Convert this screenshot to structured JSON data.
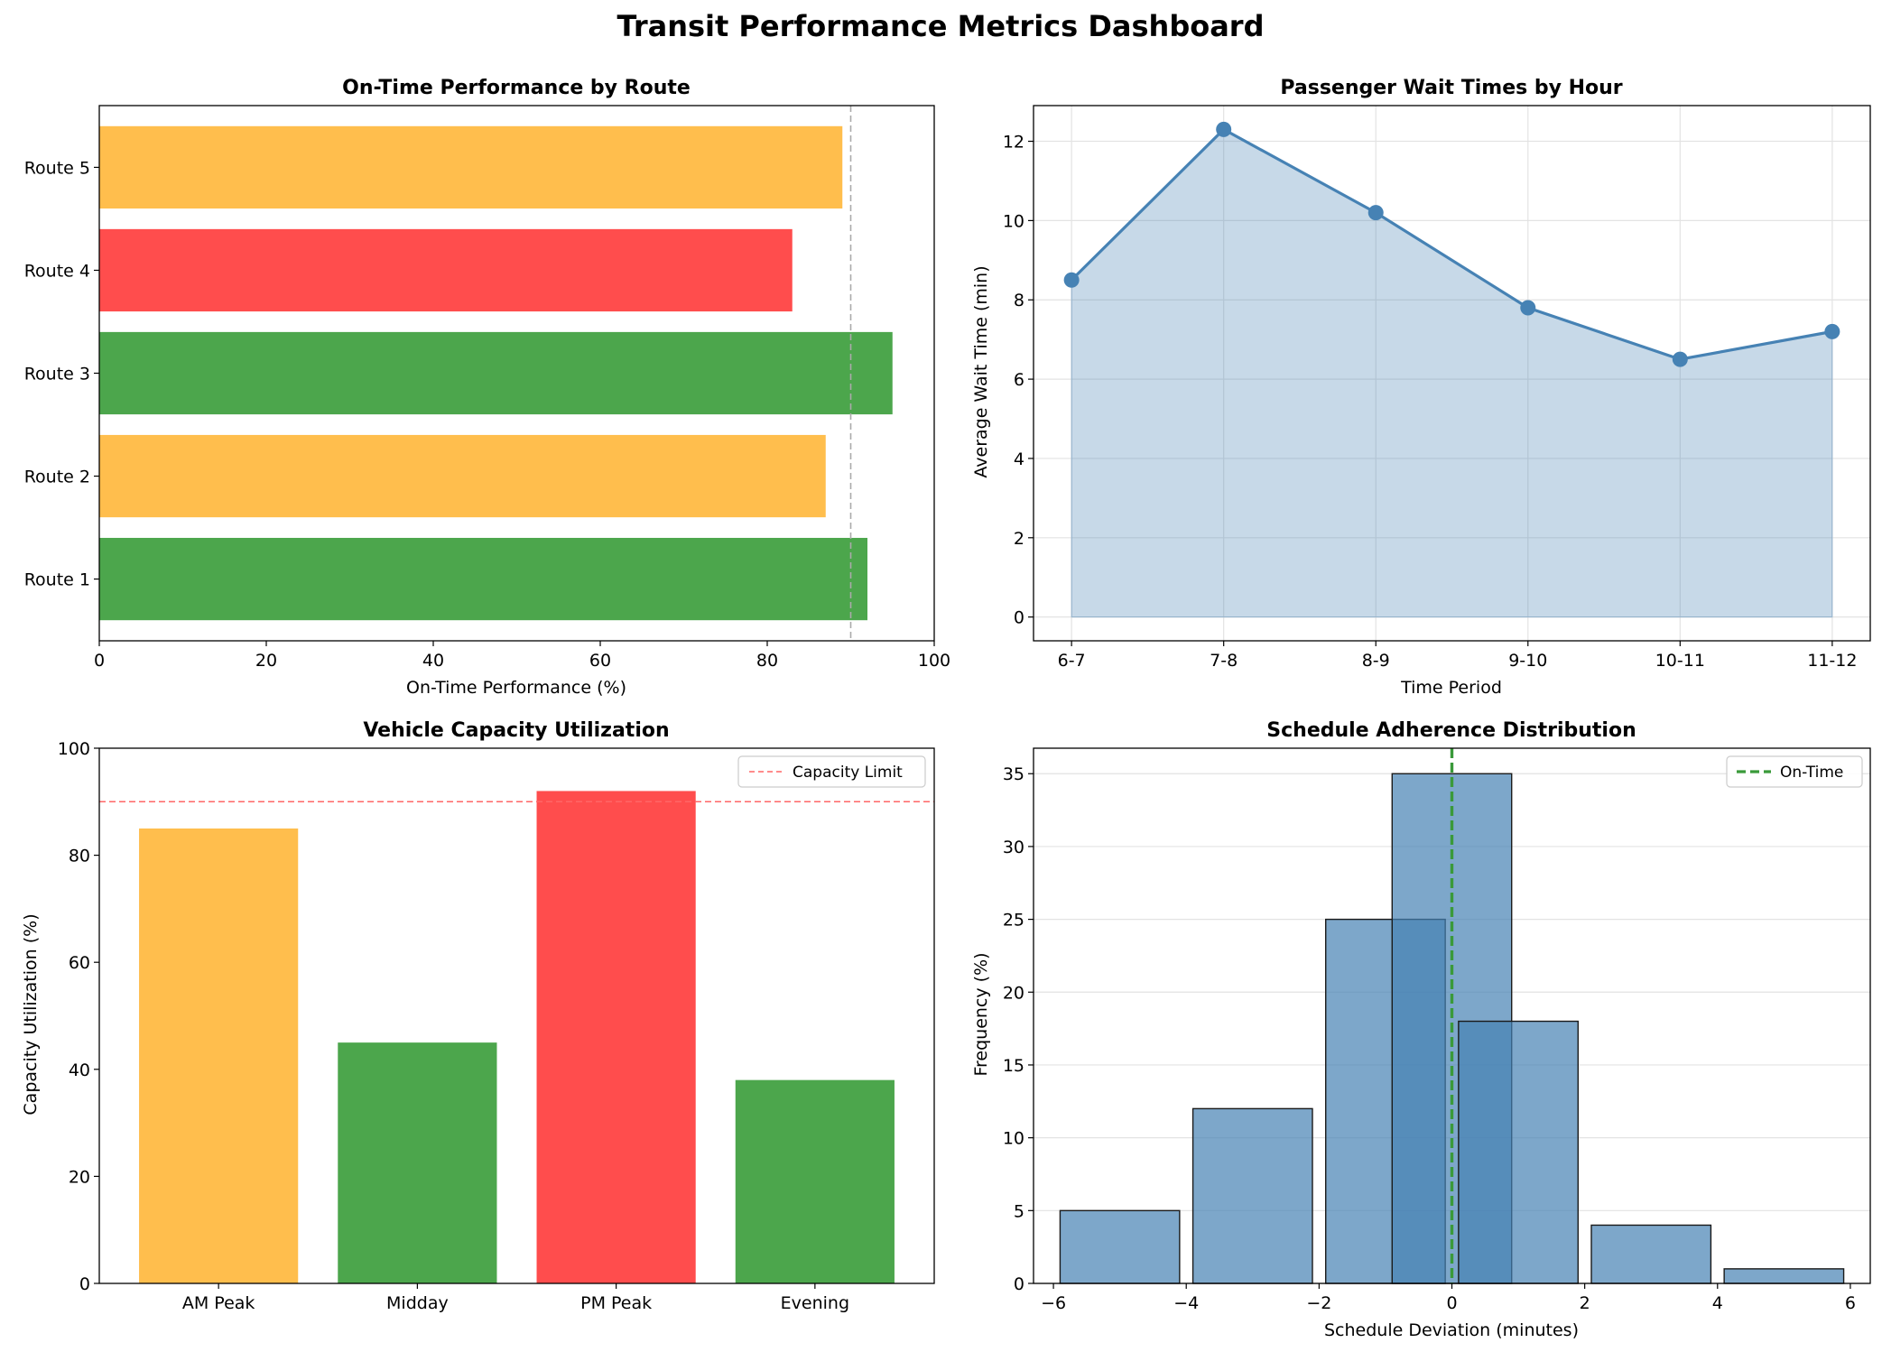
{
  "title": "Transit Performance Metrics Dashboard",
  "colors": {
    "good": "#4ca64c",
    "warn": "#ffbe4d",
    "bad": "#ff4d4d",
    "steel": "#4682b4",
    "steel_fill": "#c5d6e7",
    "hist_fill": "#7fa7cb",
    "hist_overlap": "#5a8fbd",
    "ontime_line": "#3a9a3a",
    "capacity_line": "#ff6666",
    "target_line": "#aaaaaa"
  },
  "chart_data": [
    {
      "id": "ontime",
      "type": "bar",
      "orientation": "horizontal",
      "title": "On-Time Performance by Route",
      "xlabel": "On-Time Performance (%)",
      "ylabel": "",
      "xlim": [
        0,
        100
      ],
      "xticks": [
        "0",
        "20",
        "40",
        "60",
        "80",
        "100"
      ],
      "categories": [
        "Route 1",
        "Route 2",
        "Route 3",
        "Route 4",
        "Route 5"
      ],
      "values": [
        92,
        87,
        95,
        83,
        89
      ],
      "bar_colors": [
        "good",
        "warn",
        "good",
        "bad",
        "warn"
      ],
      "reference_line": 90,
      "grid": false
    },
    {
      "id": "wait",
      "type": "area",
      "title": "Passenger Wait Times by Hour",
      "xlabel": "Time Period",
      "ylabel": "Average Wait Time (min)",
      "categories": [
        "6-7",
        "7-8",
        "8-9",
        "9-10",
        "10-11",
        "11-12"
      ],
      "values": [
        8.5,
        12.3,
        10.2,
        7.8,
        6.5,
        7.2
      ],
      "ylim": [
        -0.6,
        12.9
      ],
      "yticks": [
        "0",
        "2",
        "4",
        "6",
        "8",
        "10",
        "12"
      ],
      "grid": true
    },
    {
      "id": "capacity",
      "type": "bar",
      "title": "Vehicle Capacity Utilization",
      "xlabel": "",
      "ylabel": "Capacity Utilization (%)",
      "categories": [
        "AM Peak",
        "Midday",
        "PM Peak",
        "Evening"
      ],
      "values": [
        85,
        45,
        92,
        38
      ],
      "bar_colors": [
        "warn",
        "good",
        "bad",
        "good"
      ],
      "ylim": [
        0,
        100
      ],
      "yticks": [
        "0",
        "20",
        "40",
        "60",
        "80",
        "100"
      ],
      "reference_line": 90,
      "legend": [
        {
          "label": "Capacity Limit",
          "style": "dashed-red"
        }
      ],
      "legend_position": "top-right",
      "grid": false
    },
    {
      "id": "adherence",
      "type": "bar",
      "subtype": "histogram",
      "title": "Schedule Adherence Distribution",
      "xlabel": "Schedule Deviation (minutes)",
      "ylabel": "Frequency (%)",
      "bins": [
        {
          "center": -5,
          "value": 5
        },
        {
          "center": -3,
          "value": 12
        },
        {
          "center": -1,
          "value": 25
        },
        {
          "center": 0,
          "value": 35
        },
        {
          "center": 1,
          "value": 18
        },
        {
          "center": 3,
          "value": 4
        },
        {
          "center": 5,
          "value": 1
        }
      ],
      "bin_width": 1.8,
      "xlim": [
        -6.3,
        6.3
      ],
      "xticks": [
        "−6",
        "−4",
        "−2",
        "0",
        "2",
        "4",
        "6"
      ],
      "ylim": [
        0,
        36.75
      ],
      "yticks": [
        "0",
        "5",
        "10",
        "15",
        "20",
        "25",
        "30",
        "35"
      ],
      "reference_line": 0,
      "legend": [
        {
          "label": "On-Time",
          "style": "dashed-green"
        }
      ],
      "legend_position": "top-right",
      "grid": true
    }
  ]
}
